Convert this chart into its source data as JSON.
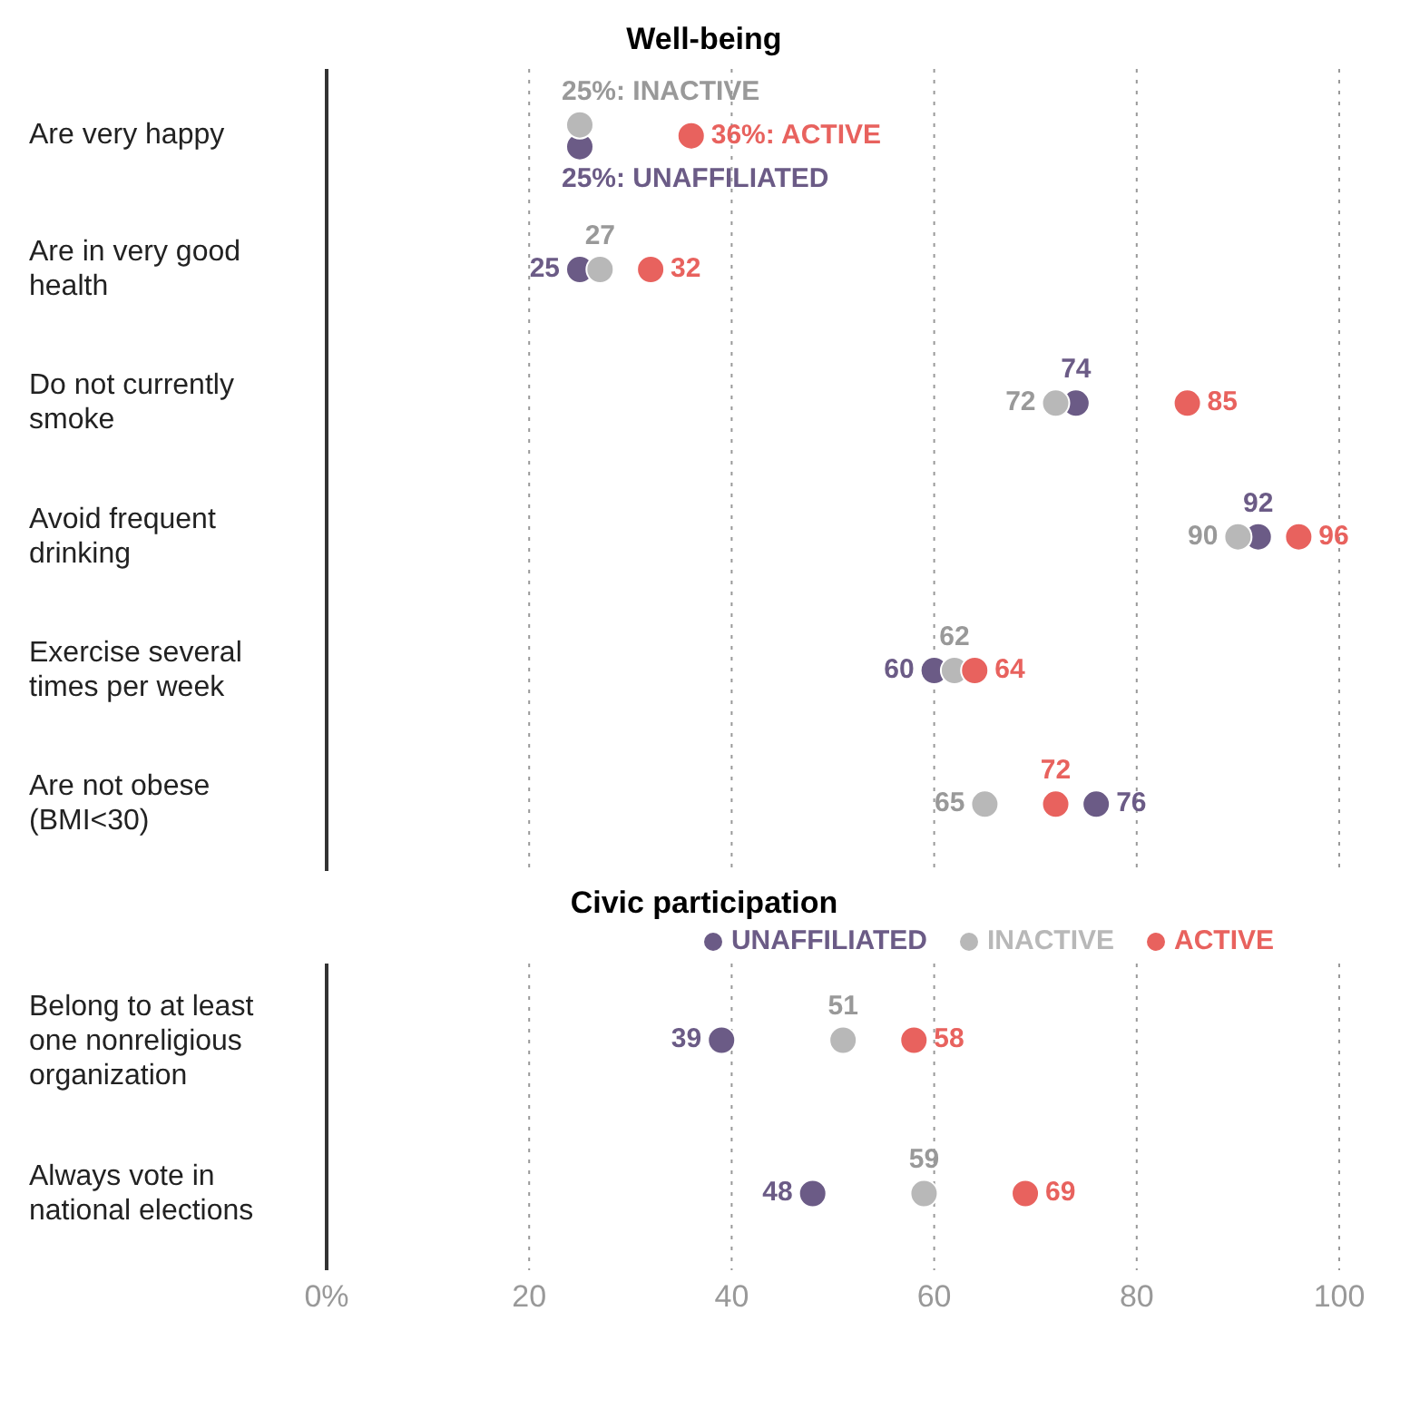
{
  "chart_data": [
    {
      "type": "scatter",
      "orientation": "horizontal",
      "title": "Well-being",
      "categories": [
        "Are very happy",
        "Are in very good health",
        "Do not currently smoke",
        "Avoid frequent drinking",
        "Exercise several times per week",
        "Are not obese (BMI<30)"
      ],
      "xlim": [
        0,
        100
      ],
      "xticks": [
        0,
        20,
        40,
        60,
        80,
        100
      ],
      "tick_labels": "y",
      "grid": "x",
      "marker": "circle",
      "series": [
        {
          "color": "#6b5b86",
          "values": [
            25,
            25,
            74,
            92,
            60,
            76
          ],
          "value_labels": [
            "25%:  UNAFFILIATED",
            "25",
            "74",
            "92",
            "60",
            "76"
          ]
        },
        {
          "color": "#b8b8b8",
          "values": [
            25,
            27,
            72,
            90,
            62,
            65
          ],
          "value_labels": [
            "25%: INACTIVE",
            "27",
            "72",
            "90",
            "62",
            "65"
          ]
        },
        {
          "color": "#e8625e",
          "values": [
            36,
            32,
            85,
            96,
            64,
            72
          ],
          "value_labels": [
            "36%: ACTIVE",
            "32",
            "85",
            "96",
            "64",
            "72"
          ]
        }
      ]
    },
    {
      "type": "scatter",
      "orientation": "horizontal",
      "title": "Civic participation",
      "categories": [
        "Belong to at least one nonreligious organization",
        "Always vote in national elections"
      ],
      "xlim": [
        0,
        100
      ],
      "xticks": [
        {
          "value": 0,
          "label": "0%"
        },
        20,
        40,
        60,
        80,
        100
      ],
      "grid": "x",
      "marker": "circle",
      "legend": "top",
      "data_labels": true,
      "series": [
        {
          "name": "UNAFFILIATED",
          "color": "#6b5b86",
          "values": [
            39,
            48
          ]
        },
        {
          "name": "INACTIVE",
          "color": "#b8b8b8",
          "values": [
            51,
            59
          ]
        },
        {
          "name": "ACTIVE",
          "color": "#e8625e",
          "values": [
            58,
            69
          ]
        }
      ]
    }
  ]
}
